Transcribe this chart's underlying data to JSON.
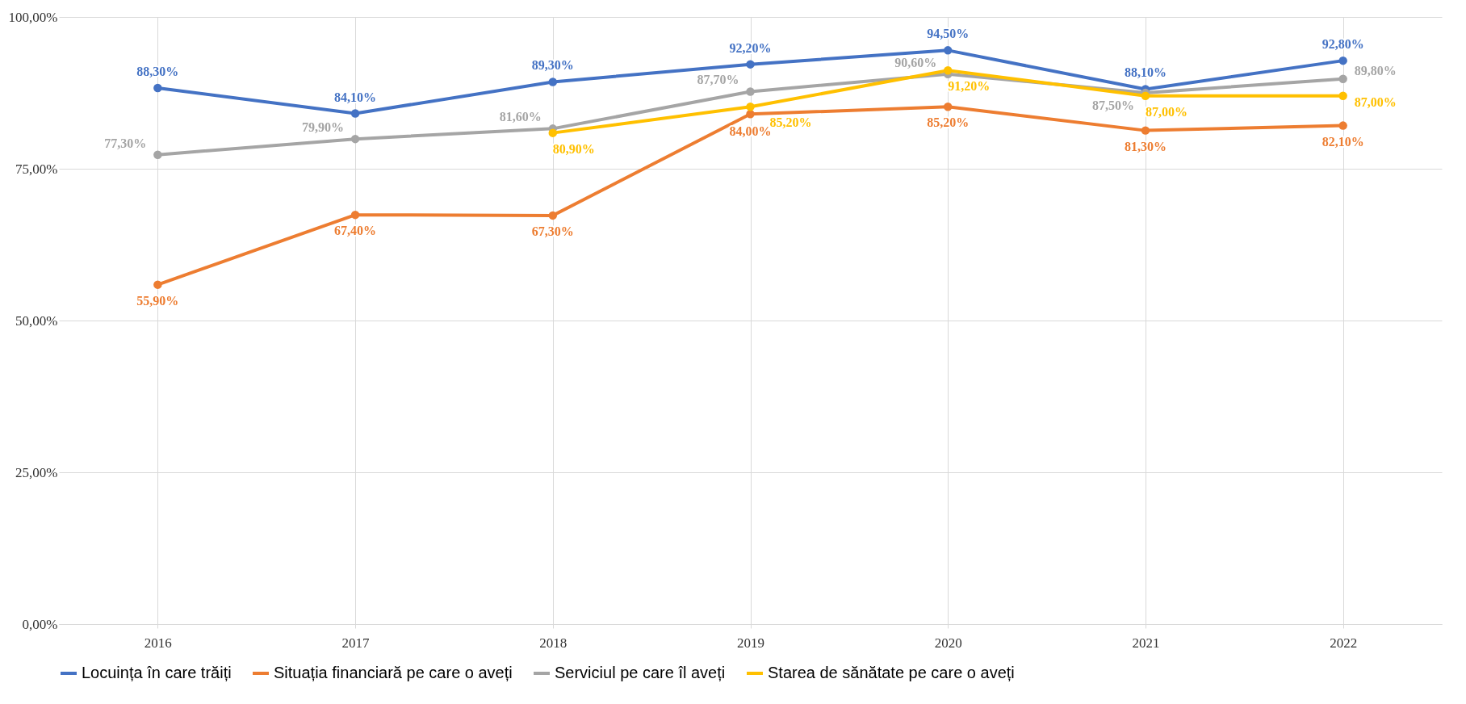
{
  "chart_data": {
    "type": "line",
    "categories": [
      "2016",
      "2017",
      "2018",
      "2019",
      "2020",
      "2021",
      "2022"
    ],
    "series": [
      {
        "name": "Locuința în care trăiți",
        "color": "#4472c4",
        "values": [
          88.3,
          84.1,
          89.3,
          92.2,
          94.5,
          88.1,
          92.8
        ],
        "value_labels": [
          "88,30%",
          "84,10%",
          "89,30%",
          "92,20%",
          "94,50%",
          "88,10%",
          "92,80%"
        ]
      },
      {
        "name": "Situația financiară pe care o aveți",
        "color": "#ed7d31",
        "values": [
          55.9,
          67.4,
          67.3,
          84.0,
          85.2,
          81.3,
          82.1
        ],
        "value_labels": [
          "55,90%",
          "67,40%",
          "67,30%",
          "84,00%",
          "85,20%",
          "81,30%",
          "82,10%"
        ]
      },
      {
        "name": "Serviciul pe care îl aveți",
        "color": "#a5a5a5",
        "values": [
          77.3,
          79.9,
          81.6,
          87.7,
          90.6,
          87.5,
          89.8
        ],
        "value_labels": [
          "77,30%",
          "79,90%",
          "81,60%",
          "87,70%",
          "90,60%",
          "87,50%",
          "89,80%"
        ]
      },
      {
        "name": "Starea de sănătate pe care o aveți",
        "color": "#ffc000",
        "values": [
          null,
          null,
          80.9,
          85.2,
          91.2,
          87.0,
          87.0
        ],
        "value_labels": [
          null,
          null,
          "80,90%",
          "85,20%",
          "91,20%",
          "87,00%",
          "87,00%"
        ]
      }
    ],
    "ylim": [
      0,
      100
    ],
    "yticks": [
      {
        "value": 0,
        "label": "0,00%"
      },
      {
        "value": 25,
        "label": "25,00%"
      },
      {
        "value": 50,
        "label": "50,00%"
      },
      {
        "value": 75,
        "label": "75,00%"
      },
      {
        "value": 100,
        "label": "100,00%"
      }
    ],
    "grid": true,
    "legend": "bottom",
    "marker": "circle",
    "line_style": "solid"
  }
}
